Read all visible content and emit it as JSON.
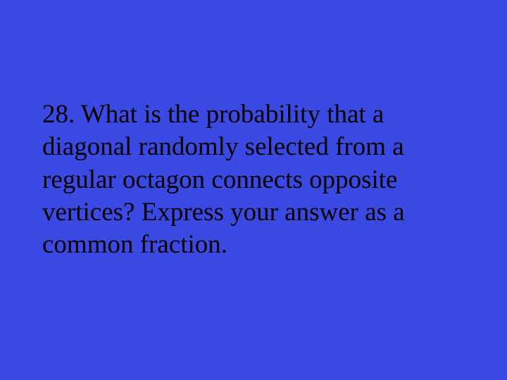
{
  "slide": {
    "background_color": "#3b49e3",
    "text_color": "#000000",
    "font_family": "Times New Roman",
    "font_size_pt": 28,
    "question_number": "28.",
    "question_text": "28. What is the probability that a diagonal randomly selected from a regular octagon connects opposite vertices?  Express your answer as a common fraction."
  }
}
